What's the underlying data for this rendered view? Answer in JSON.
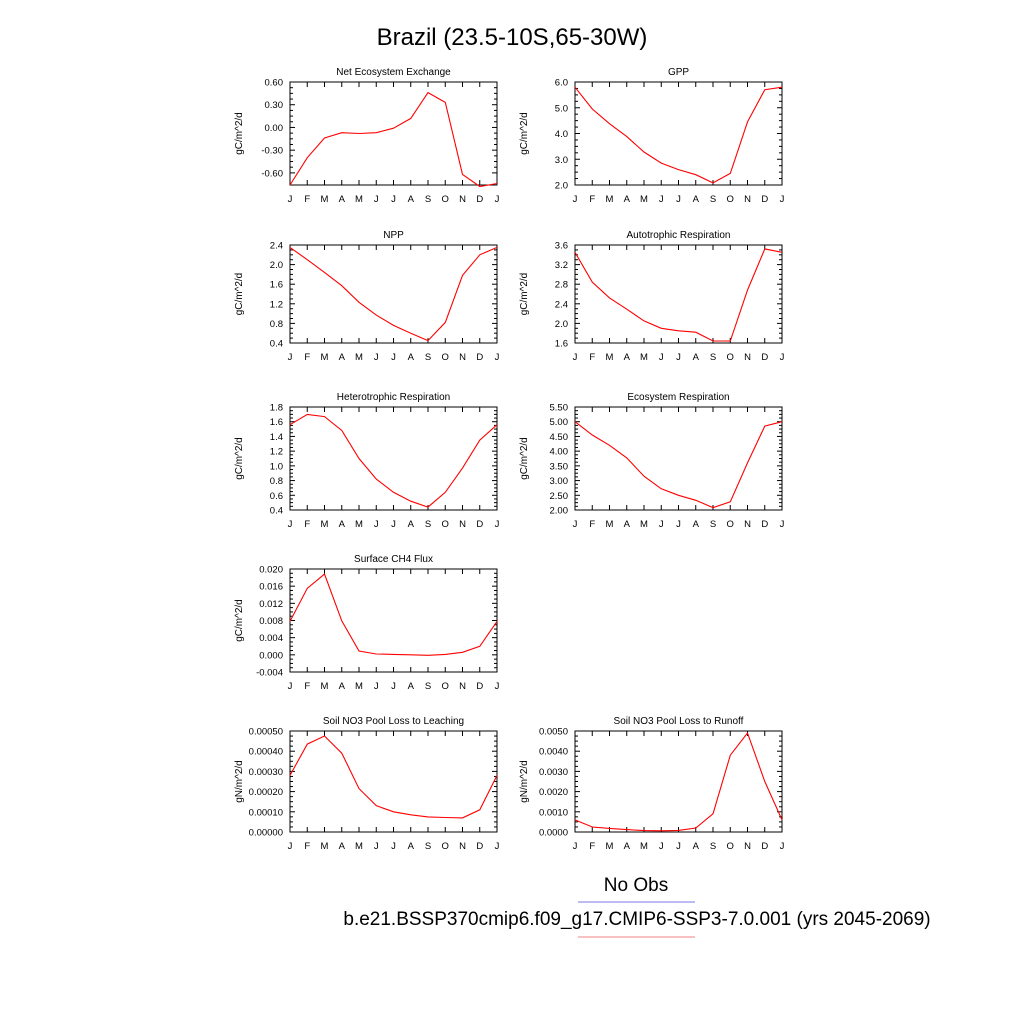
{
  "title": "Brazil (23.5-10S,65-30W)",
  "legend": {
    "no_obs_label": "No Obs",
    "case_label": "b.e21.BSSP370cmip6.f09_g17.CMIP6-SSP3-7.0.001 (yrs 2045-2069)",
    "obs_color": "#7a7ae6",
    "case_color": "#f08080"
  },
  "line_color": "#ff0000",
  "chart_data": [
    {
      "type": "line",
      "title": "Net Ecosystem Exchange",
      "ylabel": "gC/m^2/d",
      "categories": [
        "J",
        "F",
        "M",
        "A",
        "M",
        "J",
        "J",
        "A",
        "S",
        "O",
        "N",
        "D",
        "J"
      ],
      "ylim": [
        -0.76,
        0.6
      ],
      "yticks": [
        0.6,
        0.3,
        0.0,
        -0.3,
        -0.6
      ],
      "ytick_labels": [
        "0.60",
        "0.30",
        "0.00",
        "-0.30",
        "-0.60"
      ],
      "values": [
        -0.76,
        -0.4,
        -0.14,
        -0.07,
        -0.08,
        -0.07,
        -0.01,
        0.12,
        0.46,
        0.33,
        -0.62,
        -0.78,
        -0.74
      ]
    },
    {
      "type": "line",
      "title": "GPP",
      "ylabel": "gC/m^2/d",
      "categories": [
        "J",
        "F",
        "M",
        "A",
        "M",
        "J",
        "J",
        "A",
        "S",
        "O",
        "N",
        "D",
        "J"
      ],
      "ylim": [
        2.0,
        6.0
      ],
      "yticks": [
        6.0,
        5.0,
        4.0,
        3.0,
        2.0
      ],
      "ytick_labels": [
        "6.0",
        "5.0",
        "4.0",
        "3.0",
        "2.0"
      ],
      "values": [
        5.8,
        4.95,
        4.38,
        3.88,
        3.28,
        2.85,
        2.6,
        2.4,
        2.08,
        2.45,
        4.45,
        5.7,
        5.8
      ]
    },
    {
      "type": "line",
      "title": "NPP",
      "ylabel": "gC/m^2/d",
      "categories": [
        "J",
        "F",
        "M",
        "A",
        "M",
        "J",
        "J",
        "A",
        "S",
        "O",
        "N",
        "D",
        "J"
      ],
      "ylim": [
        0.4,
        2.4
      ],
      "yticks": [
        2.4,
        2.0,
        1.6,
        1.2,
        0.8,
        0.4
      ],
      "ytick_labels": [
        "2.4",
        "2.0",
        "1.6",
        "1.2",
        "0.8",
        "0.4"
      ],
      "values": [
        2.35,
        2.1,
        1.84,
        1.57,
        1.23,
        0.97,
        0.76,
        0.6,
        0.45,
        0.82,
        1.78,
        2.2,
        2.35
      ]
    },
    {
      "type": "line",
      "title": "Autotrophic Respiration",
      "ylabel": "gC/m^2/d",
      "categories": [
        "J",
        "F",
        "M",
        "A",
        "M",
        "J",
        "J",
        "A",
        "S",
        "O",
        "N",
        "D",
        "J"
      ],
      "ylim": [
        1.6,
        3.6
      ],
      "yticks": [
        3.6,
        3.2,
        2.8,
        2.4,
        2.0,
        1.6
      ],
      "ytick_labels": [
        "3.6",
        "3.2",
        "2.8",
        "2.4",
        "2.0",
        "1.6"
      ],
      "values": [
        3.45,
        2.84,
        2.52,
        2.29,
        2.05,
        1.9,
        1.85,
        1.82,
        1.64,
        1.64,
        2.68,
        3.52,
        3.45
      ]
    },
    {
      "type": "line",
      "title": "Heterotrophic Respiration",
      "ylabel": "gC/m^2/d",
      "categories": [
        "J",
        "F",
        "M",
        "A",
        "M",
        "J",
        "J",
        "A",
        "S",
        "O",
        "N",
        "D",
        "J"
      ],
      "ylim": [
        0.4,
        1.8
      ],
      "yticks": [
        1.8,
        1.6,
        1.4,
        1.2,
        1.0,
        0.8,
        0.6,
        0.4
      ],
      "ytick_labels": [
        "1.8",
        "1.6",
        "1.4",
        "1.2",
        "1.0",
        "0.8",
        "0.6",
        "0.4"
      ],
      "values": [
        1.56,
        1.7,
        1.67,
        1.48,
        1.1,
        0.82,
        0.64,
        0.52,
        0.44,
        0.64,
        0.97,
        1.35,
        1.56
      ]
    },
    {
      "type": "line",
      "title": "Ecosystem Respiration",
      "ylabel": "gC/m^2/d",
      "categories": [
        "J",
        "F",
        "M",
        "A",
        "M",
        "J",
        "J",
        "A",
        "S",
        "O",
        "N",
        "D",
        "J"
      ],
      "ylim": [
        2.0,
        5.5
      ],
      "yticks": [
        5.5,
        5.0,
        4.5,
        4.0,
        3.5,
        3.0,
        2.5,
        2.0
      ],
      "ytick_labels": [
        "5.50",
        "5.00",
        "4.50",
        "4.00",
        "3.50",
        "3.00",
        "2.50",
        "2.00"
      ],
      "values": [
        5.0,
        4.55,
        4.2,
        3.77,
        3.15,
        2.72,
        2.5,
        2.33,
        2.08,
        2.28,
        3.6,
        4.85,
        5.0
      ]
    },
    {
      "type": "line",
      "title": "Surface CH4 Flux",
      "ylabel": "gC/m^2/d",
      "categories": [
        "J",
        "F",
        "M",
        "A",
        "M",
        "J",
        "J",
        "A",
        "S",
        "O",
        "N",
        "D",
        "J"
      ],
      "ylim": [
        -0.004,
        0.02
      ],
      "yticks": [
        0.02,
        0.016,
        0.012,
        0.008,
        0.004,
        0.0,
        -0.004
      ],
      "ytick_labels": [
        "0.020",
        "0.016",
        "0.012",
        "0.008",
        "0.004",
        "0.000",
        "-0.004"
      ],
      "values": [
        0.0078,
        0.0155,
        0.0188,
        0.0079,
        0.0009,
        0.0002,
        0.0001,
        0.0,
        -0.0001,
        0.0001,
        0.0006,
        0.002,
        0.0078
      ]
    },
    {
      "type": "line",
      "title": "Soil NO3 Pool Loss to Leaching",
      "ylabel": "gN/m^2/d",
      "categories": [
        "J",
        "F",
        "M",
        "A",
        "M",
        "J",
        "J",
        "A",
        "S",
        "O",
        "N",
        "D",
        "J"
      ],
      "ylim": [
        0.0,
        0.0005
      ],
      "yticks": [
        0.0005,
        0.0004,
        0.0003,
        0.0002,
        0.0001,
        0.0
      ],
      "ytick_labels": [
        "0.00050",
        "0.00040",
        "0.00030",
        "0.00020",
        "0.00010",
        "0.00000"
      ],
      "values": [
        0.00028,
        0.000435,
        0.000475,
        0.00039,
        0.000215,
        0.00013,
        0.0001,
        8.5e-05,
        7.5e-05,
        7.2e-05,
        7e-05,
        0.00011,
        0.00028
      ]
    },
    {
      "type": "line",
      "title": "Soil NO3 Pool Loss to Runoff",
      "ylabel": "gN/m^2/d",
      "categories": [
        "J",
        "F",
        "M",
        "A",
        "M",
        "J",
        "J",
        "A",
        "S",
        "O",
        "N",
        "D",
        "J"
      ],
      "ylim": [
        0.0,
        0.005
      ],
      "yticks": [
        0.005,
        0.004,
        0.003,
        0.002,
        0.001,
        0.0
      ],
      "ytick_labels": [
        "0.0050",
        "0.0040",
        "0.0030",
        "0.0020",
        "0.0010",
        "0.0000"
      ],
      "values": [
        0.0006,
        0.00025,
        0.00018,
        0.00012,
        7e-05,
        6e-05,
        8e-05,
        0.0002,
        0.0009,
        0.0038,
        0.0049,
        0.0025,
        0.0006
      ]
    }
  ]
}
